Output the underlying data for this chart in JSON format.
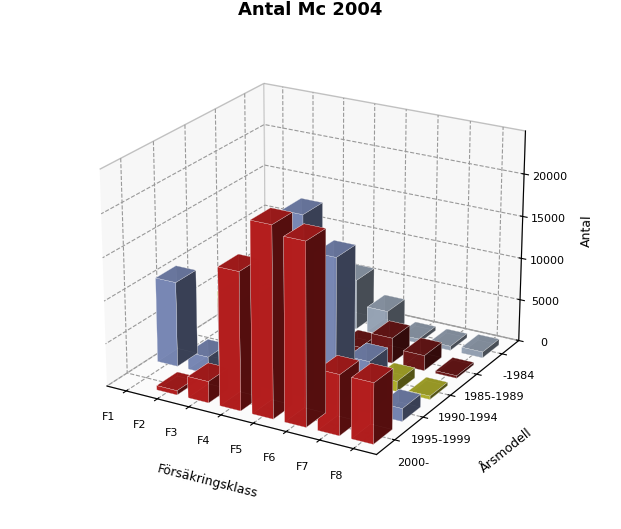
{
  "title": "Antal Mc 2004",
  "xlabel": "Försäkringsklass",
  "ylabel": "Årsmodell",
  "zlabel": "Antal",
  "forsäkringsklass": [
    "F1",
    "F2",
    "F3",
    "F4",
    "F5",
    "F6",
    "F7",
    "F8"
  ],
  "arsmodell": [
    "2000-",
    "1995-1999",
    "1990-1994",
    "1985-1989",
    "-1984"
  ],
  "colors": [
    "#cc2222",
    "#8899cc",
    "#c8c832",
    "#7a1a1a",
    "#aab8cc"
  ],
  "data": {
    "2000-": [
      0,
      500,
      2500,
      16000,
      22000,
      21000,
      7000,
      7000
    ],
    "1995-1999": [
      10000,
      2000,
      9500,
      10000,
      21000,
      17000,
      6000,
      1500
    ],
    "1990-1994": [
      0,
      7000,
      5500,
      9500,
      9000,
      2000,
      1200,
      400
    ],
    "1985-1989": [
      3000,
      500,
      1000,
      3500,
      1000,
      3000,
      1800,
      300
    ],
    "-1984": [
      0,
      2000,
      2000,
      6000,
      3000,
      500,
      500,
      700
    ]
  },
  "zlim": [
    0,
    25000
  ],
  "zticks": [
    0,
    5000,
    10000,
    15000,
    20000
  ],
  "background_color": "#ffffff",
  "title_fontsize": 13,
  "elev": 22,
  "azim": -60
}
